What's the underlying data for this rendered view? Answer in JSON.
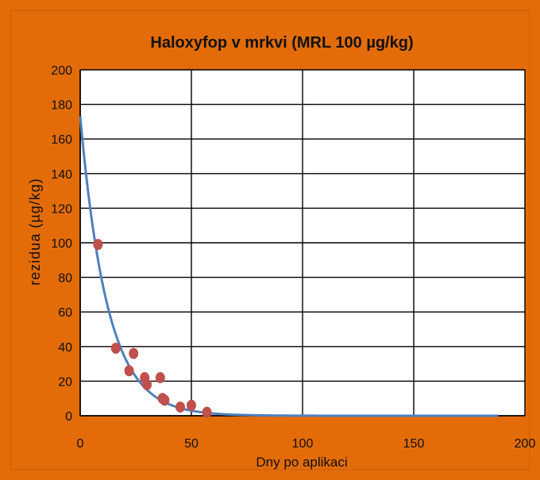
{
  "chart_data": {
    "type": "scatter",
    "title": "Haloxyfop v mrkvi (MRL 100 µg/kg)",
    "xlabel": "Dny po aplikaci",
    "ylabel": "rezidua (µg/kg)",
    "xlim": [
      0,
      200
    ],
    "ylim": [
      0,
      200
    ],
    "x_ticks": [
      0,
      50,
      100,
      150,
      200
    ],
    "y_ticks": [
      0,
      20,
      40,
      60,
      80,
      100,
      120,
      140,
      160,
      180,
      200
    ],
    "grid": true,
    "legend": "none",
    "series": [
      {
        "kind": "points",
        "x": [
          8,
          16,
          22,
          24,
          29,
          30,
          36,
          37,
          38,
          45,
          50,
          57
        ],
        "y": [
          99,
          39,
          26,
          36,
          22,
          18,
          22,
          10,
          9,
          5,
          6,
          2
        ]
      },
      {
        "kind": "fit-curve",
        "model": "exponential",
        "a": 173,
        "k": 0.0815,
        "x_range": [
          0,
          188
        ]
      }
    ],
    "colors": {
      "frame_background": "#E36C09",
      "plot_background": "#FFFFFF",
      "grid": "#000000",
      "points": "#C0504D",
      "curve": "#4F81BD"
    }
  }
}
